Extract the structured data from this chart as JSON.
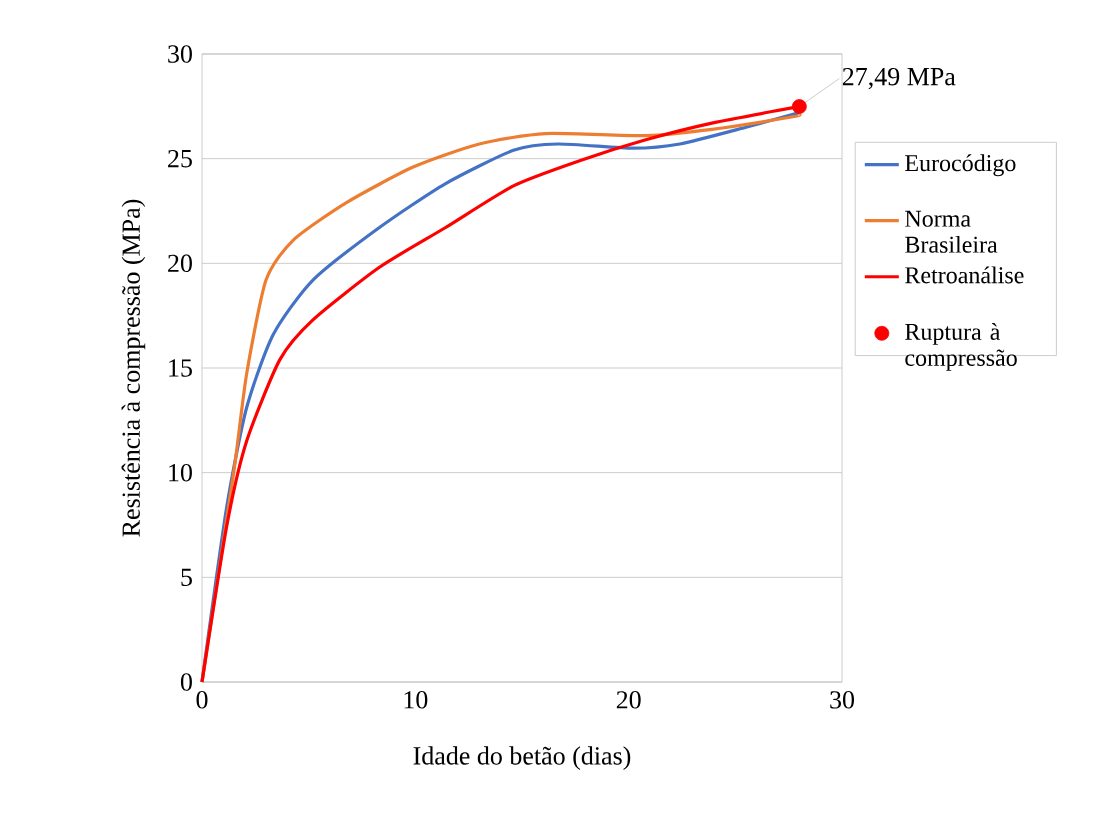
{
  "chart_data": {
    "type": "line",
    "xlabel": "Idade do betão (dias)",
    "ylabel": "Resistência à compressão (MPa)",
    "xlim": [
      0,
      30
    ],
    "ylim": [
      0,
      30
    ],
    "xticks": [
      0,
      10,
      20,
      30
    ],
    "yticks": [
      0,
      5,
      10,
      15,
      20,
      25,
      30
    ],
    "grid": "y",
    "legend": "right",
    "line_style": "solid",
    "series": [
      {
        "name": "Eurocódigo",
        "color": "#4472c4",
        "marker": "none",
        "x": [
          0,
          1.15,
          2.09,
          3.34,
          5.2,
          8.3,
          11.4,
          14.6,
          16.7,
          20.2,
          22.4,
          25.5,
          28
        ],
        "values": [
          0,
          8.3,
          13.1,
          16.6,
          19.2,
          21.7,
          23.8,
          25.4,
          25.7,
          25.5,
          25.7,
          26.5,
          27.2
        ]
      },
      {
        "name": "Norma Brasileira",
        "color": "#ed7d31",
        "marker": "none",
        "x": [
          0,
          1.47,
          2.09,
          3.0,
          4.27,
          6.77,
          9.9,
          13.0,
          16.1,
          20.8,
          23.9,
          27.7,
          28
        ],
        "values": [
          0,
          9.9,
          14.7,
          19.2,
          21.1,
          22.9,
          24.6,
          25.7,
          26.2,
          26.1,
          26.4,
          27.0,
          27.1
        ]
      },
      {
        "name": "Retroanálise",
        "color": "#ff0000",
        "marker": "none",
        "x": [
          0,
          1.15,
          2.09,
          3.65,
          5.2,
          8.3,
          11.4,
          14.6,
          17.7,
          20.8,
          23.9,
          28
        ],
        "values": [
          0,
          7.4,
          11.5,
          15.4,
          17.3,
          19.8,
          21.7,
          23.7,
          24.9,
          25.9,
          26.7,
          27.49
        ]
      },
      {
        "name": "Ruptura à compressão",
        "type": "scatter",
        "color": "#ff0000",
        "marker": "circle",
        "x": [
          28
        ],
        "values": [
          27.49
        ]
      }
    ],
    "annotations": [
      {
        "text": "27,49 MPa",
        "x": 28,
        "y": 27.49
      }
    ]
  }
}
